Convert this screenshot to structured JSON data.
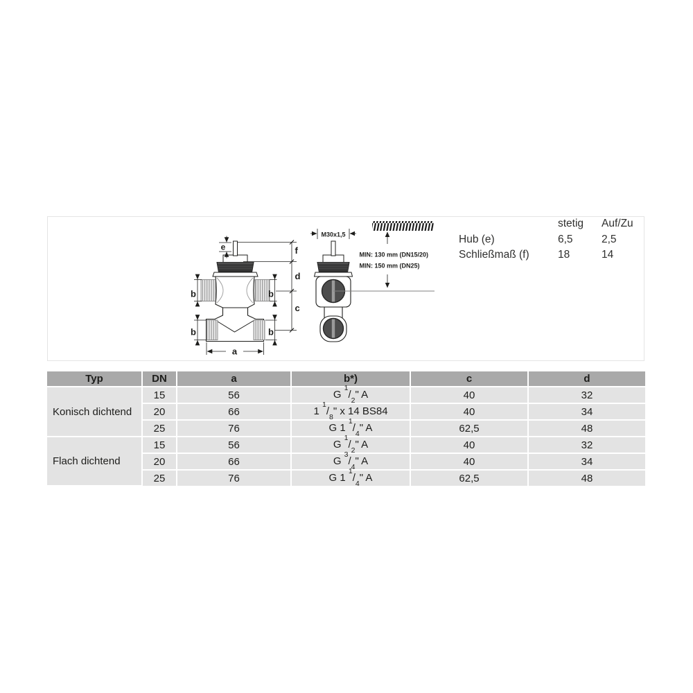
{
  "drawing": {
    "dim_labels": {
      "a": "a",
      "b": "b",
      "c": "c",
      "d": "d",
      "e": "e",
      "f": "f"
    },
    "thread_label": "M30x1,5",
    "min_note_1": "MIN: 130 mm (DN15/20)",
    "min_note_2": "MIN: 150 mm (DN25)"
  },
  "spec_table": {
    "columns": {
      "stetig": "stetig",
      "auf_zu": "Auf/Zu"
    },
    "rows": [
      {
        "label": "Hub (e)",
        "stetig": "6,5",
        "auf_zu": "2,5"
      },
      {
        "label": "Schließmaß (f)",
        "stetig": "18",
        "auf_zu": "14"
      }
    ]
  },
  "table": {
    "headers": [
      "Typ",
      "DN",
      "a",
      "b*)",
      "c",
      "d"
    ],
    "groups": [
      {
        "typ": "Konisch dichtend",
        "rows": [
          {
            "dn": "15",
            "a": "56",
            "b": "G [1/2]\" A",
            "c": "40",
            "d": "32"
          },
          {
            "dn": "20",
            "a": "66",
            "b": "1 [1/8]\" x 14 BS84",
            "c": "40",
            "d": "34"
          },
          {
            "dn": "25",
            "a": "76",
            "b": "G 1 [1/4]\" A",
            "c": "62,5",
            "d": "48"
          }
        ]
      },
      {
        "typ": "Flach dichtend",
        "rows": [
          {
            "dn": "15",
            "a": "56",
            "b": "G [1/2]\" A",
            "c": "40",
            "d": "32"
          },
          {
            "dn": "20",
            "a": "66",
            "b": "G [3/4]\" A",
            "c": "40",
            "d": "34"
          },
          {
            "dn": "25",
            "a": "76",
            "b": "G 1 [1/4]\" A",
            "c": "62,5",
            "d": "48"
          }
        ]
      }
    ]
  },
  "colors": {
    "table_header_bg": "#a9a9a9",
    "table_row_bg": "#e3e3e3",
    "text": "#1d1d1b",
    "metal_dark": "#4a4a4a"
  }
}
